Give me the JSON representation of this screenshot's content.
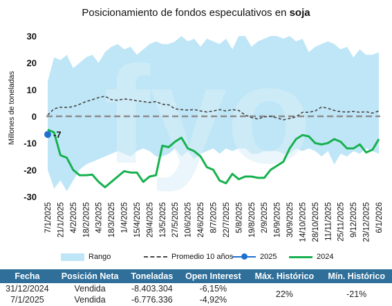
{
  "title_prefix": "Posicionamiento de fondos especulativos en ",
  "title_bold": "soja",
  "watermark": "fyo",
  "chart_data": {
    "type": "line",
    "ylabel": "Millones de toneladas",
    "ylim": [
      -30,
      30
    ],
    "yticks": [
      30,
      20,
      10,
      0,
      -10,
      -20,
      -30
    ],
    "x_tick_labels": [
      "7/1/2025",
      "21/1/2025",
      "4/2/2025",
      "18/2/2025",
      "4/3/2025",
      "18/3/2025",
      "1/4/2025",
      "15/4/2025",
      "29/4/2025",
      "13/5/2025",
      "27/5/2025",
      "10/6/2025",
      "24/6/2025",
      "8/7/2025",
      "22/7/2025",
      "5/8/2025",
      "19/8/2025",
      "2/9/2025",
      "16/9/2025",
      "30/9/2025",
      "14/10/2025",
      "28/10/2025",
      "11/11/2025",
      "25/11/2025",
      "9/12/2025",
      "23/12/2025",
      "6/1/2026"
    ],
    "n_weeks": 53,
    "zero_line": 0,
    "series": [
      {
        "name": "Rango",
        "kind": "band",
        "upper": [
          13,
          22,
          21,
          23,
          18,
          20,
          22,
          23,
          20,
          24,
          26,
          27,
          25,
          26,
          23,
          25,
          27,
          28,
          27,
          27,
          28,
          30,
          28,
          29,
          26,
          29,
          28,
          27,
          29,
          25,
          30,
          30,
          26,
          28,
          29,
          30,
          30,
          29,
          30,
          28,
          29,
          24,
          26,
          27,
          28,
          27,
          25,
          26,
          22,
          25,
          23,
          23,
          24
        ],
        "lower": [
          -20,
          -27,
          -24,
          -28,
          -24,
          -20,
          -18,
          -17,
          -16,
          -15,
          -14,
          -13,
          -14,
          -15,
          -13,
          -12,
          -13,
          -15,
          -15,
          -14,
          -12,
          -15,
          -13,
          -16,
          -14,
          -13,
          -12,
          -14,
          -12,
          -13,
          -12,
          -12,
          -14,
          -14,
          -13,
          -13,
          -13,
          -14,
          -14,
          -12,
          -13,
          -12,
          -13,
          -15,
          -13,
          -18,
          -14,
          -15,
          -13,
          -14,
          -12,
          -13,
          -14
        ]
      },
      {
        "name": "Promedio 10 años",
        "kind": "dashed",
        "values": [
          0.5,
          2.8,
          3.4,
          3.3,
          3.6,
          4.5,
          5.5,
          6.2,
          7.0,
          7.5,
          6.2,
          6.0,
          6.5,
          6.2,
          5.8,
          5.5,
          5.2,
          5.5,
          4.5,
          4.3,
          2.8,
          2.5,
          2.3,
          2.5,
          2.0,
          1.6,
          2.0,
          2.5,
          2.0,
          2.5,
          2.2,
          0.5,
          -0.5,
          -1.0,
          -0.2,
          0.0,
          -0.6,
          -1.3,
          -0.8,
          -0.2,
          1.5,
          1.5,
          2.0,
          3.5,
          3.0,
          2.2,
          1.7,
          1.6,
          1.8,
          1.5,
          1.7,
          1.2,
          2.0
        ]
      },
      {
        "name": "2025",
        "kind": "point",
        "values": [
          -6.776
        ]
      },
      {
        "name": "2024",
        "kind": "line",
        "values": [
          -5.0,
          -6.0,
          -14.5,
          -15.5,
          -20.0,
          -22.0,
          -22.0,
          -21.8,
          -24.5,
          -26.5,
          -24.5,
          -22.5,
          -20.5,
          -21.0,
          -21.0,
          -24.5,
          -22.5,
          -22.0,
          -11.0,
          -11.5,
          -9.5,
          -8.0,
          -12.0,
          -13.0,
          -15.0,
          -19.0,
          -20.0,
          -24.0,
          -25.0,
          -21.5,
          -23.5,
          -22.5,
          -22.5,
          -23.0,
          -23.0,
          -20.0,
          -18.5,
          -17.0,
          -12.0,
          -8.5,
          -7.0,
          -7.5,
          -10.0,
          -10.5,
          -10.0,
          -8.5,
          -9.5,
          -12.0,
          -12.0,
          -10.5,
          -13.5,
          -12.5,
          -8.5
        ]
      }
    ],
    "annotation": {
      "text": "-7",
      "series": "2025",
      "index": 0
    },
    "colors": {
      "band": "#bfe6f7",
      "dashed": "#444444",
      "s2025": "#1f6fd0",
      "s2024": "#16b14e",
      "zero": "#8a8a8a"
    }
  },
  "legend": {
    "rango": "Rango",
    "promedio": "Promedio 10 años",
    "s2025": "2025",
    "s2024": "2024"
  },
  "table": {
    "headers": [
      "Fecha",
      "Posición Neta",
      "Toneladas",
      "Open Interest",
      "Máx. Histórico",
      "Mín. Histórico"
    ],
    "rows": [
      {
        "fecha": "31/12/2024",
        "posicion": "Vendida",
        "toneladas": "-8.403.304",
        "oi": "-6,15%"
      },
      {
        "fecha": "7/1/2025",
        "posicion": "Vendida",
        "toneladas": "-6.776.336",
        "oi": "-4,92%"
      }
    ],
    "max_hist": "22%",
    "min_hist": "-21%",
    "header_color": "#2f6f99"
  }
}
